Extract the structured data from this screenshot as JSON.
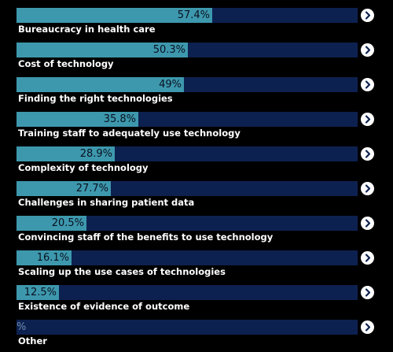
{
  "chart_data": {
    "type": "bar",
    "orientation": "horizontal",
    "categories": [
      "Bureaucracy in health care",
      "Cost of technology",
      "Finding the right technologies",
      "Training staff to adequately use technology",
      "Complexity of technology",
      "Challenges in sharing patient data",
      "Convincing staff of the benefits to use technology",
      "Scaling up the use cases of technologies",
      "Existence of evidence of outcome",
      "Other"
    ],
    "values": [
      57.4,
      50.3,
      49,
      35.8,
      28.9,
      27.7,
      20.5,
      16.1,
      12.5,
      null
    ],
    "value_labels": [
      "57.4%",
      "50.3%",
      "49%",
      "35.8%",
      "28.9%",
      "27.7%",
      "20.5%",
      "16.1%",
      "12.5%",
      "%"
    ],
    "xlim": [
      0,
      100
    ],
    "colors": {
      "fill": "#3d98ad",
      "track": "#0d2150",
      "background": "#000000"
    },
    "row_icon": "chevron-right-icon"
  }
}
